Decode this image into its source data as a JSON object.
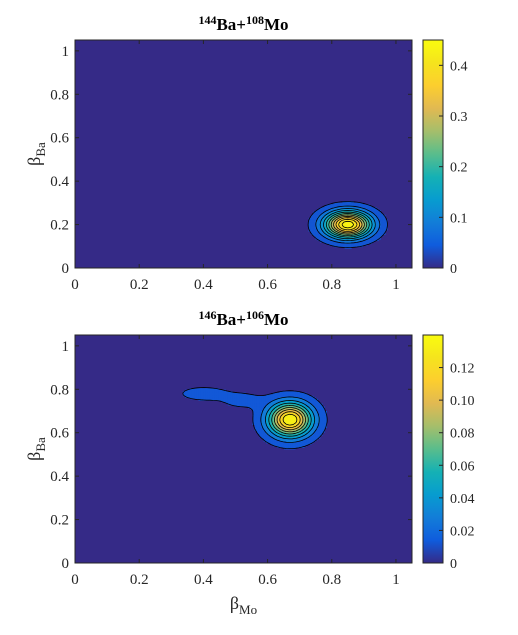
{
  "chart_data": [
    {
      "type": "contour",
      "title_parts": [
        {
          "text": "144",
          "sup": true
        },
        {
          "text": "Ba+",
          "sup": false
        },
        {
          "text": "108",
          "sup": true
        },
        {
          "text": "Mo",
          "sup": false
        }
      ],
      "xlabel": "",
      "ylabel": {
        "main": "β",
        "sub": "Ba"
      },
      "xlim": [
        0,
        1.05
      ],
      "ylim": [
        0,
        1.05
      ],
      "xticks": [
        "0",
        "0.2",
        "0.4",
        "0.6",
        "0.8",
        "1"
      ],
      "yticks": [
        "0",
        "0.2",
        "0.4",
        "0.6",
        "0.8",
        "1"
      ],
      "colorbar": {
        "min": 0,
        "max": 0.45,
        "ticks": [
          "0",
          "0.1",
          "0.2",
          "0.3",
          "0.4"
        ]
      },
      "peak": {
        "x": 0.85,
        "y": 0.2,
        "value": 0.45
      },
      "contour_levels": [
        0.02,
        0.06,
        0.1,
        0.14,
        0.18,
        0.22,
        0.26,
        0.3,
        0.34,
        0.38,
        0.42
      ],
      "surface_points": [
        {
          "x": 0.85,
          "y": 0.2,
          "value": 0.45,
          "sx": 0.07,
          "sy": 0.06
        }
      ]
    },
    {
      "type": "contour",
      "title_parts": [
        {
          "text": "146",
          "sup": true
        },
        {
          "text": "Ba+",
          "sup": false
        },
        {
          "text": "106",
          "sup": true
        },
        {
          "text": "Mo",
          "sup": false
        }
      ],
      "xlabel": {
        "main": "β",
        "sub": "Mo"
      },
      "ylabel": {
        "main": "β",
        "sub": "Ba"
      },
      "xlim": [
        0,
        1.05
      ],
      "ylim": [
        0,
        1.05
      ],
      "xticks": [
        "0",
        "0.2",
        "0.4",
        "0.6",
        "0.8",
        "1"
      ],
      "yticks": [
        "0",
        "0.2",
        "0.4",
        "0.6",
        "0.8",
        "1"
      ],
      "colorbar": {
        "min": 0,
        "max": 0.14,
        "ticks": [
          "0",
          "0.02",
          "0.04",
          "0.06",
          "0.08",
          "0.10",
          "0.12"
        ]
      },
      "peak": {
        "x": 0.67,
        "y": 0.66,
        "value": 0.14
      },
      "contour_levels": [
        0.006,
        0.02,
        0.035,
        0.05,
        0.065,
        0.08,
        0.095,
        0.11,
        0.125
      ],
      "surface_points": [
        {
          "x": 0.67,
          "y": 0.66,
          "value": 0.14,
          "sx": 0.065,
          "sy": 0.075
        },
        {
          "x": 0.4,
          "y": 0.78,
          "value": 0.014,
          "sx": 0.07,
          "sy": 0.03
        },
        {
          "x": 0.52,
          "y": 0.75,
          "value": 0.01,
          "sx": 0.07,
          "sy": 0.04
        }
      ]
    }
  ]
}
